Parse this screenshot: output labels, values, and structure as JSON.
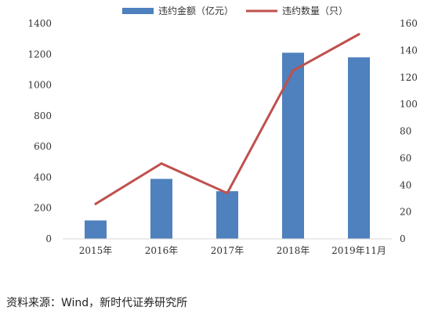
{
  "chart_data": {
    "type": "bar",
    "categories": [
      "2015年",
      "2016年",
      "2017年",
      "2018年",
      "2019年11月"
    ],
    "series": [
      {
        "name": "违约金额（亿元）",
        "type": "bar",
        "axis": "left",
        "color": "#4e81bd",
        "values": [
          120,
          390,
          310,
          1210,
          1180
        ]
      },
      {
        "name": "违约数量（只）",
        "type": "line",
        "axis": "right",
        "color": "#c0504d",
        "values": [
          26,
          56,
          34,
          125,
          152
        ]
      }
    ],
    "y_left": {
      "lim": [
        0,
        1400
      ],
      "ticks": [
        0,
        200,
        400,
        600,
        800,
        1000,
        1200,
        1400
      ]
    },
    "y_right": {
      "lim": [
        0,
        160
      ],
      "ticks": [
        0,
        20,
        40,
        60,
        80,
        100,
        120,
        140,
        160
      ]
    },
    "legend_position": "top-center",
    "grid": false
  },
  "footer": {
    "source": "资料来源：Wind，新时代证券研究所"
  }
}
